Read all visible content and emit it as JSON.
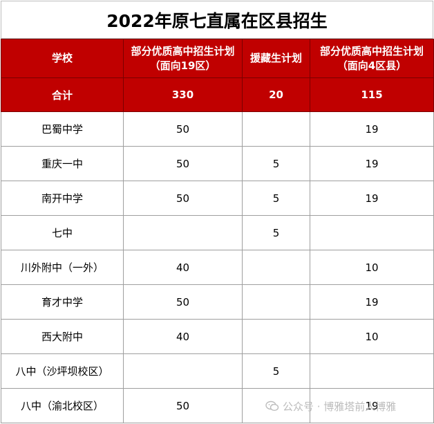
{
  "title": "2022年原七直属在区县招生",
  "header": {
    "col_school": "学校",
    "col_plan_19": "部分优质高中招生计划（面向19区）",
    "col_aid": "援藏生计划",
    "col_plan_4": "部分优质高中招生计划（面向4区县）"
  },
  "total": {
    "label": "合计",
    "plan_19": "330",
    "aid": "20",
    "plan_4": "115"
  },
  "rows": [
    {
      "school": "巴蜀中学",
      "plan_19": "50",
      "aid": "",
      "plan_4": "19"
    },
    {
      "school": "重庆一中",
      "plan_19": "50",
      "aid": "5",
      "plan_4": "19"
    },
    {
      "school": "南开中学",
      "plan_19": "50",
      "aid": "5",
      "plan_4": "19"
    },
    {
      "school": "七中",
      "plan_19": "",
      "aid": "5",
      "plan_4": ""
    },
    {
      "school": "川外附中（一外）",
      "plan_19": "40",
      "aid": "",
      "plan_4": "10"
    },
    {
      "school": "育才中学",
      "plan_19": "50",
      "aid": "",
      "plan_4": "19"
    },
    {
      "school": "西大附中",
      "plan_19": "40",
      "aid": "",
      "plan_4": "10"
    },
    {
      "school": "八中（沙坪坝校区）",
      "plan_19": "",
      "aid": "5",
      "plan_4": ""
    },
    {
      "school": "八中（渝北校区）",
      "plan_19": "50",
      "aid": "",
      "plan_4": "19"
    }
  ],
  "watermark": {
    "text": "公众号 · 博雅塔前人博雅",
    "icon": "wechat-icon",
    "color": "#bcbcbc"
  },
  "colors": {
    "header_bg": "#c00000",
    "header_text": "#ffffff",
    "grid": "#9e9e9e"
  }
}
